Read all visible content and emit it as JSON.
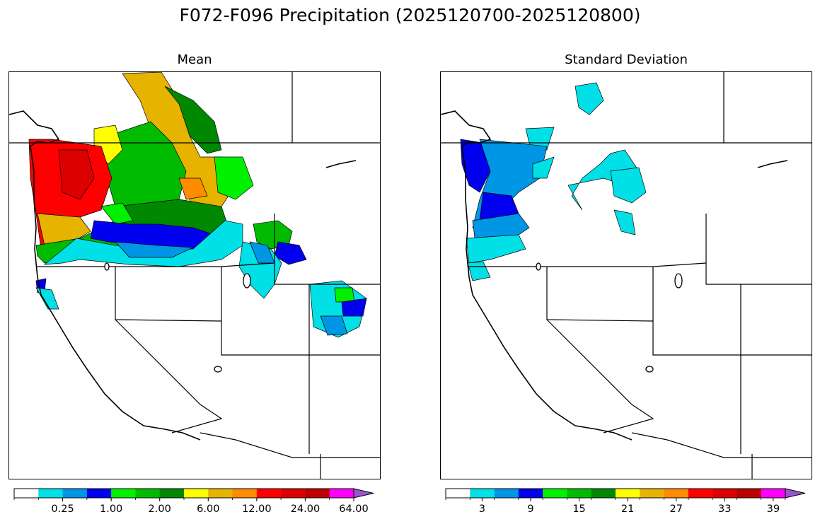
{
  "title": "F072-F096 Precipitation (2025120700-2025120800)",
  "palette": [
    "#ffffff",
    "#00e0e6",
    "#0096e6",
    "#0000ee",
    "#00f000",
    "#00bb00",
    "#008800",
    "#ffff00",
    "#e6b400",
    "#ff8c00",
    "#ff0000",
    "#dd0000",
    "#bb0000",
    "#ff00ff",
    "#9955cc"
  ],
  "panels": [
    {
      "name": "mean",
      "title": "Mean",
      "tick_labels": [
        "0.25",
        "1.00",
        "2.00",
        "6.00",
        "12.00",
        "24.00",
        "64.00"
      ],
      "tick_boundaries": [
        2,
        4,
        6,
        8,
        10,
        12,
        14
      ]
    },
    {
      "name": "std",
      "title": "Standard Deviation",
      "tick_labels": [
        "3",
        "9",
        "15",
        "21",
        "27",
        "33",
        "39"
      ],
      "tick_boundaries": [
        1.5,
        3.5,
        5.5,
        7.5,
        9.5,
        11.5,
        13.5
      ]
    }
  ]
}
